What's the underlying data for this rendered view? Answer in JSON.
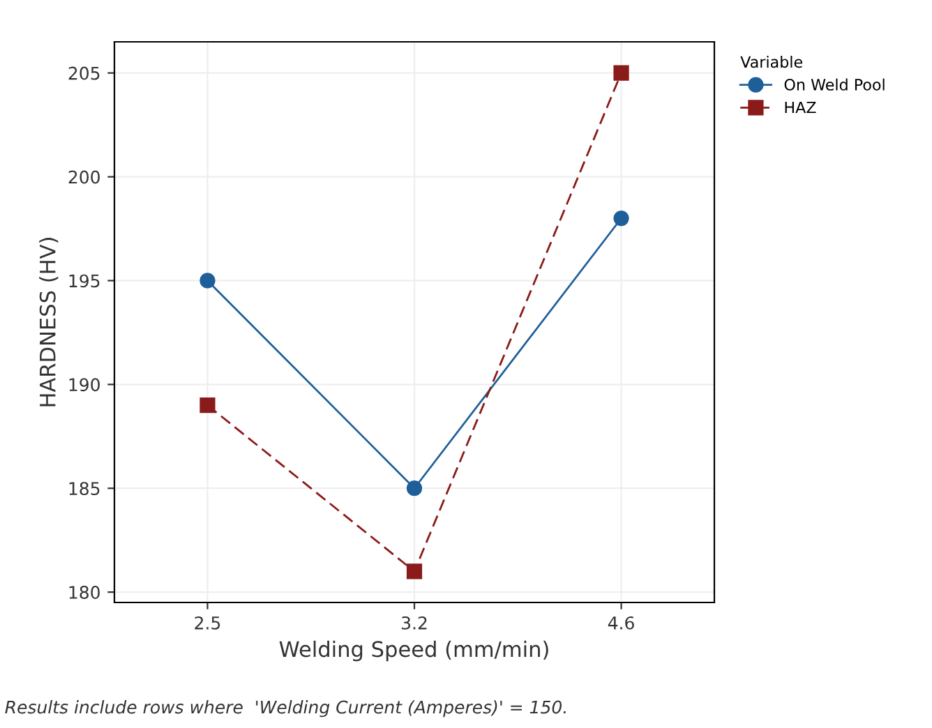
{
  "chart_data": {
    "type": "line",
    "xlabel": "Welding Speed (mm/min)",
    "ylabel": "HARDNESS (HV)",
    "legend_title": "Variable",
    "categories": [
      "2.5",
      "3.2",
      "4.6"
    ],
    "series": [
      {
        "name": "On Weld Pool",
        "color": "#1f5f99",
        "values": [
          195,
          185,
          198
        ],
        "marker": "circle",
        "line_style": "solid"
      },
      {
        "name": "HAZ",
        "color": "#8b1a1a",
        "values": [
          189,
          181,
          205
        ],
        "marker": "square",
        "line_style": "dashed"
      }
    ],
    "ylim": [
      179.5,
      206.5
    ],
    "yticks": [
      180,
      185,
      190,
      195,
      200,
      205
    ],
    "grid": true,
    "legend": "top right",
    "annotations": [
      "Results include rows where  'Welding Current (Amperes)' = 150."
    ]
  }
}
